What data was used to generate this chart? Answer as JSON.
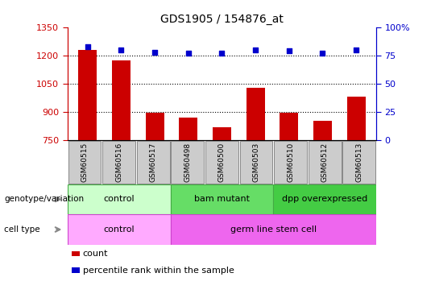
{
  "title": "GDS1905 / 154876_at",
  "categories": [
    "GSM60515",
    "GSM60516",
    "GSM60517",
    "GSM60498",
    "GSM60500",
    "GSM60503",
    "GSM60510",
    "GSM60512",
    "GSM60513"
  ],
  "counts": [
    1230,
    1175,
    895,
    870,
    820,
    1030,
    895,
    855,
    980
  ],
  "percentile_ranks": [
    83,
    80,
    78,
    77,
    77,
    80,
    79,
    77,
    80
  ],
  "ylim_left": [
    750,
    1350
  ],
  "ylim_right": [
    0,
    100
  ],
  "yticks_left": [
    750,
    900,
    1050,
    1200,
    1350
  ],
  "yticks_right": [
    0,
    25,
    50,
    75,
    100
  ],
  "bar_color": "#cc0000",
  "dot_color": "#0000cc",
  "genotype_groups": [
    {
      "label": "control",
      "cols": [
        0,
        1,
        2
      ],
      "color": "#ccffcc",
      "border": "#44aa44"
    },
    {
      "label": "bam mutant",
      "cols": [
        3,
        4,
        5
      ],
      "color": "#66dd66",
      "border": "#44aa44"
    },
    {
      "label": "dpp overexpressed",
      "cols": [
        6,
        7,
        8
      ],
      "color": "#44cc44",
      "border": "#44aa44"
    }
  ],
  "celltype_groups": [
    {
      "label": "control",
      "cols": [
        0,
        1,
        2
      ],
      "color": "#ffaaff",
      "border": "#cc44cc"
    },
    {
      "label": "germ line stem cell",
      "cols": [
        3,
        4,
        5,
        6,
        7,
        8
      ],
      "color": "#ee66ee",
      "border": "#cc44cc"
    }
  ],
  "legend_items": [
    {
      "label": "count",
      "color": "#cc0000"
    },
    {
      "label": "percentile rank within the sample",
      "color": "#0000cc"
    }
  ],
  "row_labels": [
    "genotype/variation",
    "cell type"
  ],
  "tick_color_left": "#cc0000",
  "tick_color_right": "#0000cc",
  "xtick_box_color": "#cccccc",
  "xtick_box_border": "#888888"
}
